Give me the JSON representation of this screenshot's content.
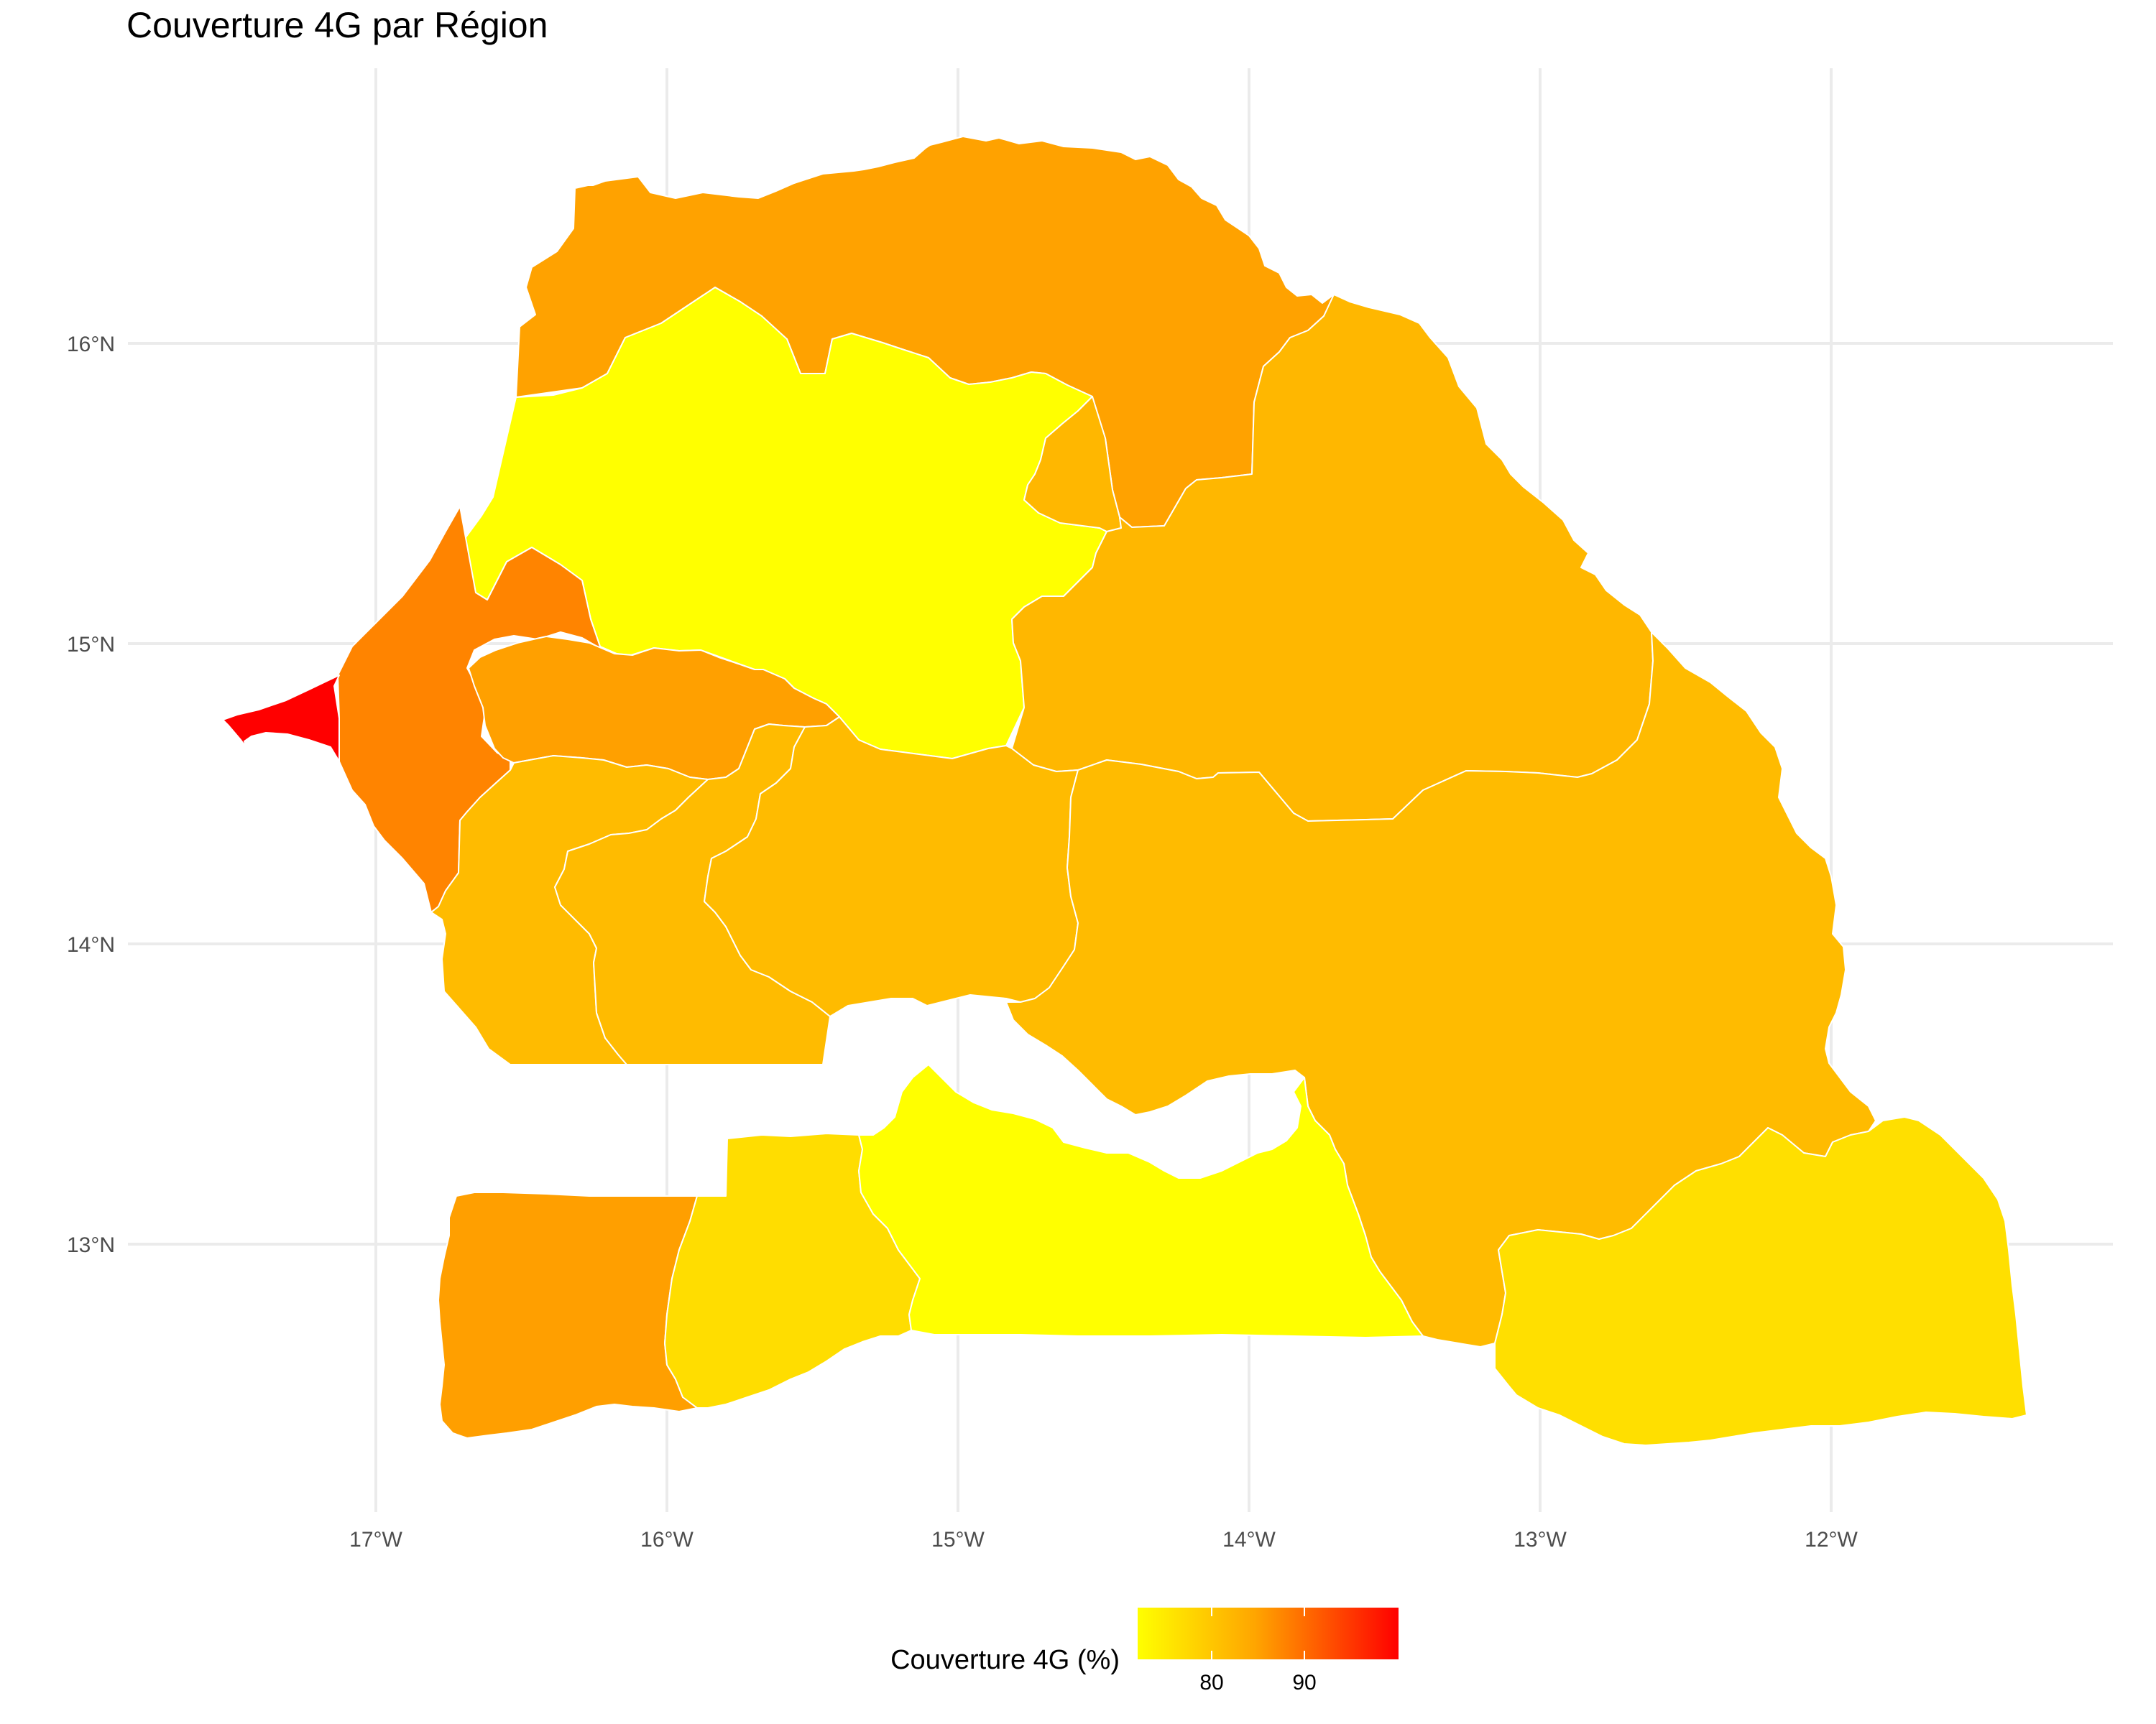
{
  "title": "Couverture 4G par Région",
  "x_axis": {
    "ticks": [
      "17°W",
      "16°W",
      "15°W",
      "14°W",
      "13°W",
      "12°W"
    ]
  },
  "y_axis": {
    "ticks": [
      "16°N",
      "15°N",
      "14°N",
      "13°N"
    ]
  },
  "legend": {
    "title": "Couverture 4G (%)",
    "ticks": [
      "80",
      "90"
    ],
    "gradient_low": "#ffff00",
    "gradient_high": "#ff0000"
  },
  "colors": {
    "grid": "#ebebeb",
    "region_border": "#ffffff"
  },
  "regions": [
    {
      "id": "north",
      "value": 86.1,
      "color": "#ffa200"
    },
    {
      "id": "north-central",
      "value": 74.0,
      "color": "#ffff00"
    },
    {
      "id": "east-north",
      "value": 80.8,
      "color": "#ffb700"
    },
    {
      "id": "small-central",
      "value": 80.8,
      "color": "#ffb700"
    },
    {
      "id": "west-coast",
      "value": 89.4,
      "color": "#ff8400"
    },
    {
      "id": "cape",
      "value": 99.9,
      "color": "#ff0000"
    },
    {
      "id": "inner-west",
      "value": 86.1,
      "color": "#ffa000"
    },
    {
      "id": "southwest-a",
      "value": 80.3,
      "color": "#ffbb00"
    },
    {
      "id": "southwest-b",
      "value": 80.3,
      "color": "#ffbb00"
    },
    {
      "id": "center-south",
      "value": 80.3,
      "color": "#ffbb00"
    },
    {
      "id": "east",
      "value": 80.3,
      "color": "#ffbb00"
    },
    {
      "id": "south-west",
      "value": 86.1,
      "color": "#ff9f00"
    },
    {
      "id": "south-west-central",
      "value": 76.9,
      "color": "#ffdd00"
    },
    {
      "id": "south-central",
      "value": 74.0,
      "color": "#ffff00"
    },
    {
      "id": "south-east",
      "value": 76.9,
      "color": "#ffdf00"
    }
  ]
}
